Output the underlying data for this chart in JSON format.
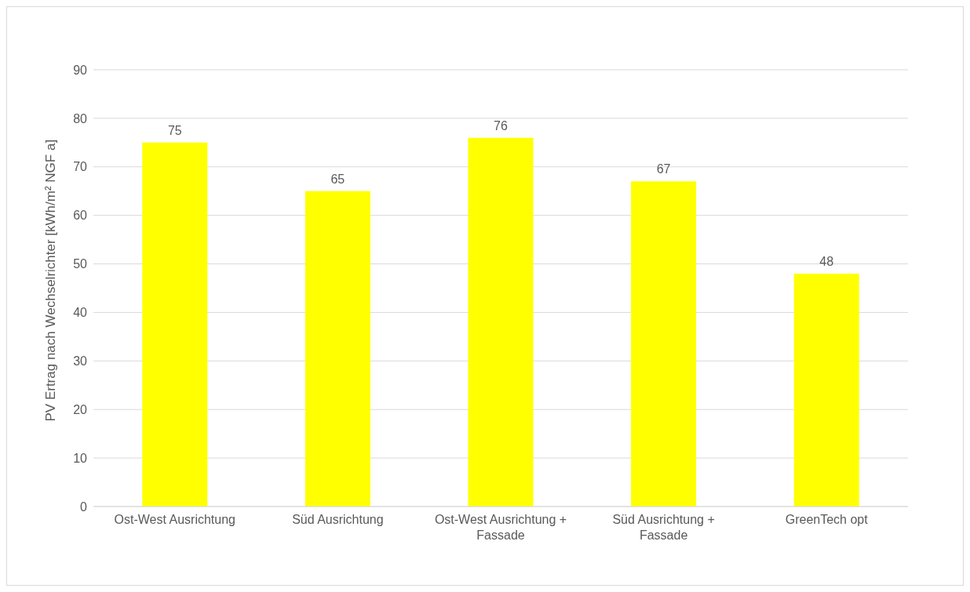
{
  "chart_data": {
    "type": "bar",
    "ylabel": "PV Ertrag nach Wechselrichter [kWh/m² NGF a]",
    "categories": [
      "Ost-West Ausrichtung",
      "Süd Ausrichtung",
      "Ost-West Ausrichtung + Fassade",
      "Süd Ausrichtung + Fassade",
      "GreenTech opt"
    ],
    "values": [
      75,
      65,
      76,
      67,
      48
    ],
    "color": "#ffff00",
    "ylim": [
      0,
      90
    ],
    "yticks": [
      0,
      10,
      20,
      30,
      40,
      50,
      60,
      70,
      80,
      90
    ],
    "grid": "y",
    "data_labels": true
  }
}
